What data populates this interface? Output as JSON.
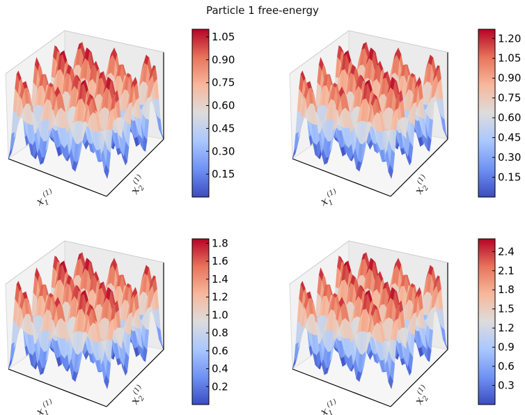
{
  "title": "Particle 1 free-energy",
  "colormap": {
    "name": "coolwarm",
    "stops": [
      "#3b4cc0",
      "#6f92f3",
      "#aac7fd",
      "#dddcdc",
      "#f7b89c",
      "#e7745b",
      "#b40426"
    ]
  },
  "chart_data": [
    {
      "type": "surface3d",
      "position": "top-left",
      "xlabel": {
        "base": "x",
        "sub": "1",
        "sup": "(1)"
      },
      "ylabel": {
        "base": "x",
        "sub": "2",
        "sup": "(1)"
      },
      "zlim": [
        0.0,
        1.1
      ],
      "peaks_per_axis": 3,
      "amplitude": 0.55,
      "colorbar": {
        "vmin": 0.0,
        "vmax": 1.1,
        "ticks": [
          "0.15",
          "0.30",
          "0.45",
          "0.60",
          "0.75",
          "0.90",
          "1.05"
        ]
      }
    },
    {
      "type": "surface3d",
      "position": "top-right",
      "xlabel": {
        "base": "x",
        "sub": "1",
        "sup": "(1)"
      },
      "ylabel": {
        "base": "x",
        "sub": "2",
        "sup": "(1)"
      },
      "zlim": [
        0.0,
        1.27
      ],
      "peaks_per_axis": 3,
      "amplitude": 0.635,
      "colorbar": {
        "vmin": 0.0,
        "vmax": 1.27,
        "ticks": [
          "0.15",
          "0.30",
          "0.45",
          "0.60",
          "0.75",
          "0.90",
          "1.05",
          "1.20"
        ]
      }
    },
    {
      "type": "surface3d",
      "position": "bottom-left",
      "xlabel": {
        "base": "x",
        "sub": "1",
        "sup": "(1)"
      },
      "ylabel": {
        "base": "x",
        "sub": "2",
        "sup": "(1)"
      },
      "zlim": [
        0.0,
        1.85
      ],
      "peaks_per_axis": 3,
      "amplitude": 0.925,
      "colorbar": {
        "vmin": 0.0,
        "vmax": 1.85,
        "ticks": [
          "0.2",
          "0.4",
          "0.6",
          "0.8",
          "1.0",
          "1.2",
          "1.4",
          "1.6",
          "1.8"
        ]
      }
    },
    {
      "type": "surface3d",
      "position": "bottom-right",
      "xlabel": {
        "base": "x",
        "sub": "1",
        "sup": "(1)"
      },
      "ylabel": {
        "base": "x",
        "sub": "2",
        "sup": "(1)"
      },
      "zlim": [
        0.0,
        2.6
      ],
      "peaks_per_axis": 3,
      "amplitude": 1.3,
      "colorbar": {
        "vmin": 0.0,
        "vmax": 2.6,
        "ticks": [
          "0.3",
          "0.6",
          "0.9",
          "1.2",
          "1.5",
          "1.8",
          "2.1",
          "2.4"
        ]
      }
    }
  ]
}
